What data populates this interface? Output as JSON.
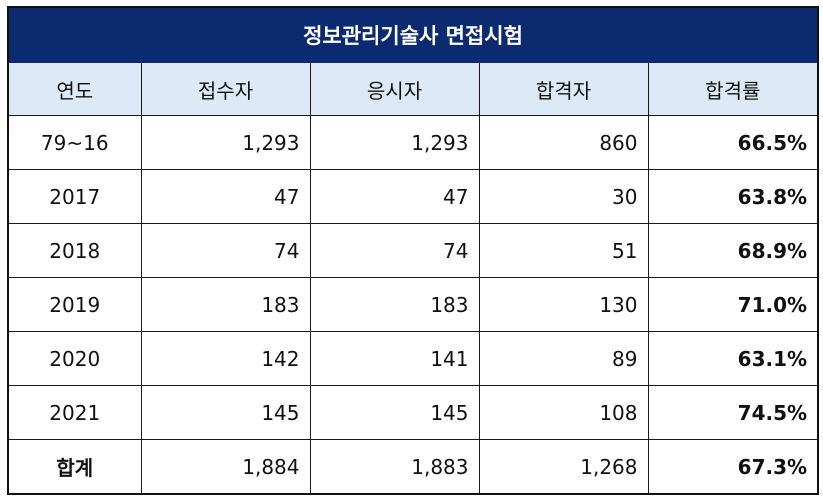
{
  "title": "정보관리기술사 면접시험",
  "headers": [
    "연도",
    "접수자",
    "응시자",
    "합격자",
    "합격률"
  ],
  "rows": [
    {
      "year": "79~16",
      "applicants": "1,293",
      "examinees": "1,293",
      "passed": "860",
      "rate": "66.5%"
    },
    {
      "year": "2017",
      "applicants": "47",
      "examinees": "47",
      "passed": "30",
      "rate": "63.8%"
    },
    {
      "year": "2018",
      "applicants": "74",
      "examinees": "74",
      "passed": "51",
      "rate": "68.9%"
    },
    {
      "year": "2019",
      "applicants": "183",
      "examinees": "183",
      "passed": "130",
      "rate": "71.0%"
    },
    {
      "year": "2020",
      "applicants": "142",
      "examinees": "141",
      "passed": "89",
      "rate": "63.1%"
    },
    {
      "year": "2021",
      "applicants": "145",
      "examinees": "145",
      "passed": "108",
      "rate": "74.5%"
    }
  ],
  "total": {
    "label": "합계",
    "applicants": "1,884",
    "examinees": "1,883",
    "passed": "1,268",
    "rate": "67.3%"
  },
  "colors": {
    "title_bg": "#0b2a6f",
    "header_bg": "#dde9f6"
  }
}
